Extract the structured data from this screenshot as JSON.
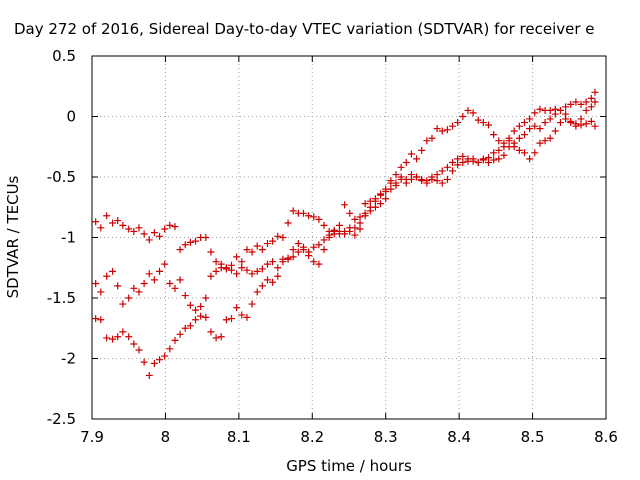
{
  "chart_data": {
    "type": "scatter",
    "title": "Day 272 of 2016, Sidereal Day-to-day VTEC variation (SDTVAR) for receiver e",
    "xlabel": "GPS time / hours",
    "ylabel": "SDTVAR / TECUs",
    "xlim": [
      7.9,
      8.6
    ],
    "ylim": [
      -2.5,
      0.5
    ],
    "xticks": [
      "7.9",
      "8",
      "8.1",
      "8.2",
      "8.3",
      "8.4",
      "8.5",
      "8.6"
    ],
    "yticks": [
      "0.5",
      "0",
      "-0.5",
      "-1",
      "-1.5",
      "-2",
      "-2.5"
    ],
    "grid": true,
    "marker": "plus",
    "color": "#cc0000",
    "series": [
      {
        "points": [
          [
            7.905,
            -0.87
          ],
          [
            7.912,
            -0.92
          ],
          [
            7.92,
            -0.82
          ],
          [
            7.928,
            -0.88
          ],
          [
            7.935,
            -0.86
          ],
          [
            7.942,
            -0.9
          ],
          [
            7.95,
            -0.93
          ],
          [
            7.957,
            -0.95
          ],
          [
            7.964,
            -0.92
          ],
          [
            7.971,
            -0.97
          ],
          [
            7.978,
            -1.02
          ],
          [
            7.985,
            -0.96
          ],
          [
            7.992,
            -0.99
          ],
          [
            7.999,
            -0.93
          ],
          [
            8.006,
            -0.9
          ],
          [
            8.013,
            -0.91
          ],
          [
            8.02,
            -1.1
          ],
          [
            8.027,
            -1.06
          ],
          [
            8.034,
            -1.04
          ],
          [
            8.041,
            -1.03
          ],
          [
            8.048,
            -1.0
          ],
          [
            8.055,
            -1.0
          ],
          [
            8.062,
            -1.12
          ],
          [
            8.069,
            -1.2
          ],
          [
            8.076,
            -1.25
          ],
          [
            8.083,
            -1.26
          ],
          [
            8.09,
            -1.23
          ],
          [
            8.097,
            -1.16
          ],
          [
            8.104,
            -1.2
          ],
          [
            8.111,
            -1.1
          ],
          [
            8.118,
            -1.12
          ],
          [
            8.125,
            -1.07
          ],
          [
            8.132,
            -1.1
          ],
          [
            8.139,
            -1.05
          ],
          [
            8.146,
            -1.03
          ],
          [
            8.153,
            -0.99
          ],
          [
            8.16,
            -1.0
          ],
          [
            8.167,
            -0.88
          ],
          [
            8.174,
            -0.78
          ],
          [
            8.181,
            -0.8
          ],
          [
            8.188,
            -0.8
          ],
          [
            8.195,
            -0.82
          ],
          [
            8.202,
            -0.83
          ],
          [
            8.209,
            -0.85
          ],
          [
            8.216,
            -0.9
          ],
          [
            8.223,
            -0.95
          ],
          [
            8.23,
            -0.94
          ],
          [
            8.237,
            -0.9
          ],
          [
            8.244,
            -0.73
          ],
          [
            8.251,
            -0.8
          ],
          [
            8.258,
            -0.85
          ],
          [
            8.265,
            -0.83
          ],
          [
            8.272,
            -0.72
          ],
          [
            8.279,
            -0.7
          ],
          [
            8.286,
            -0.68
          ],
          [
            8.293,
            -0.64
          ],
          [
            8.3,
            -0.6
          ],
          [
            8.307,
            -0.53
          ],
          [
            8.314,
            -0.48
          ],
          [
            8.321,
            -0.42
          ],
          [
            8.328,
            -0.38
          ],
          [
            8.335,
            -0.31
          ],
          [
            8.342,
            -0.35
          ],
          [
            8.349,
            -0.28
          ],
          [
            8.356,
            -0.2
          ],
          [
            8.363,
            -0.18
          ],
          [
            8.37,
            -0.1
          ],
          [
            8.377,
            -0.12
          ],
          [
            8.384,
            -0.11
          ],
          [
            8.391,
            -0.08
          ],
          [
            8.398,
            -0.05
          ],
          [
            8.405,
            0.0
          ],
          [
            8.412,
            0.05
          ],
          [
            8.419,
            0.03
          ],
          [
            8.426,
            -0.03
          ],
          [
            8.433,
            -0.05
          ],
          [
            8.44,
            -0.07
          ],
          [
            8.447,
            -0.15
          ],
          [
            8.454,
            -0.2
          ],
          [
            8.461,
            -0.22
          ],
          [
            8.468,
            -0.18
          ],
          [
            8.475,
            -0.25
          ],
          [
            8.482,
            -0.28
          ],
          [
            8.489,
            -0.3
          ],
          [
            8.496,
            -0.35
          ],
          [
            8.503,
            -0.3
          ],
          [
            8.51,
            -0.22
          ],
          [
            8.517,
            -0.2
          ],
          [
            8.524,
            -0.18
          ],
          [
            8.531,
            -0.12
          ],
          [
            8.538,
            -0.05
          ],
          [
            8.545,
            -0.02
          ],
          [
            8.552,
            -0.05
          ],
          [
            8.559,
            -0.08
          ],
          [
            8.566,
            -0.02
          ],
          [
            8.573,
            0.05
          ],
          [
            8.58,
            0.08
          ],
          [
            8.585,
            0.12
          ]
        ]
      },
      {
        "points": [
          [
            7.905,
            -1.38
          ],
          [
            7.912,
            -1.45
          ],
          [
            7.92,
            -1.32
          ],
          [
            7.928,
            -1.28
          ],
          [
            7.935,
            -1.4
          ],
          [
            7.942,
            -1.55
          ],
          [
            7.95,
            -1.5
          ],
          [
            7.957,
            -1.42
          ],
          [
            7.964,
            -1.45
          ],
          [
            7.971,
            -1.38
          ],
          [
            7.978,
            -1.3
          ],
          [
            7.985,
            -1.35
          ],
          [
            7.992,
            -1.28
          ],
          [
            7.999,
            -1.22
          ],
          [
            8.006,
            -1.38
          ],
          [
            8.013,
            -1.42
          ],
          [
            8.02,
            -1.35
          ],
          [
            8.027,
            -1.48
          ],
          [
            8.034,
            -1.56
          ],
          [
            8.041,
            -1.6
          ],
          [
            8.048,
            -1.57
          ],
          [
            8.055,
            -1.5
          ],
          [
            8.062,
            -1.32
          ],
          [
            8.069,
            -1.28
          ],
          [
            8.076,
            -1.22
          ],
          [
            8.083,
            -1.25
          ],
          [
            8.09,
            -1.27
          ],
          [
            8.097,
            -1.3
          ],
          [
            8.104,
            -1.25
          ],
          [
            8.111,
            -1.27
          ],
          [
            8.118,
            -1.3
          ],
          [
            8.125,
            -1.28
          ],
          [
            8.132,
            -1.26
          ],
          [
            8.139,
            -1.22
          ],
          [
            8.146,
            -1.2
          ],
          [
            8.153,
            -1.25
          ],
          [
            8.16,
            -1.18
          ],
          [
            8.167,
            -1.17
          ],
          [
            8.174,
            -1.1
          ],
          [
            8.181,
            -1.05
          ],
          [
            8.188,
            -1.08
          ],
          [
            8.195,
            -1.15
          ],
          [
            8.202,
            -1.2
          ],
          [
            8.209,
            -1.22
          ],
          [
            8.216,
            -1.1
          ],
          [
            8.223,
            -1.0
          ],
          [
            8.23,
            -0.95
          ],
          [
            8.237,
            -0.97
          ],
          [
            8.244,
            -0.95
          ],
          [
            8.251,
            -0.92
          ],
          [
            8.258,
            -0.92
          ],
          [
            8.265,
            -0.88
          ],
          [
            8.272,
            -0.8
          ],
          [
            8.279,
            -0.78
          ],
          [
            8.286,
            -0.75
          ],
          [
            8.293,
            -0.72
          ],
          [
            8.3,
            -0.68
          ],
          [
            8.307,
            -0.6
          ],
          [
            8.314,
            -0.55
          ],
          [
            8.321,
            -0.5
          ],
          [
            8.328,
            -0.52
          ],
          [
            8.335,
            -0.48
          ],
          [
            8.342,
            -0.5
          ],
          [
            8.349,
            -0.52
          ],
          [
            8.356,
            -0.53
          ],
          [
            8.363,
            -0.5
          ],
          [
            8.37,
            -0.53
          ],
          [
            8.377,
            -0.55
          ],
          [
            8.384,
            -0.52
          ],
          [
            8.391,
            -0.45
          ],
          [
            8.398,
            -0.4
          ],
          [
            8.405,
            -0.38
          ],
          [
            8.412,
            -0.35
          ],
          [
            8.419,
            -0.37
          ],
          [
            8.426,
            -0.38
          ],
          [
            8.433,
            -0.35
          ],
          [
            8.44,
            -0.38
          ],
          [
            8.447,
            -0.36
          ],
          [
            8.454,
            -0.35
          ],
          [
            8.461,
            -0.32
          ],
          [
            8.468,
            -0.25
          ],
          [
            8.475,
            -0.22
          ],
          [
            8.482,
            -0.18
          ],
          [
            8.489,
            -0.15
          ],
          [
            8.496,
            -0.1
          ],
          [
            8.503,
            -0.08
          ],
          [
            8.51,
            -0.1
          ],
          [
            8.517,
            -0.05
          ],
          [
            8.524,
            -0.02
          ],
          [
            8.531,
            0.02
          ],
          [
            8.538,
            0.05
          ],
          [
            8.545,
            0.08
          ],
          [
            8.552,
            0.1
          ],
          [
            8.559,
            0.12
          ],
          [
            8.566,
            0.1
          ],
          [
            8.573,
            0.12
          ],
          [
            8.58,
            0.15
          ],
          [
            8.585,
            0.2
          ]
        ]
      },
      {
        "points": [
          [
            7.905,
            -1.67
          ],
          [
            7.912,
            -1.68
          ],
          [
            7.92,
            -1.83
          ],
          [
            7.928,
            -1.84
          ],
          [
            7.935,
            -1.82
          ],
          [
            7.942,
            -1.78
          ],
          [
            7.95,
            -1.82
          ],
          [
            7.957,
            -1.88
          ],
          [
            7.964,
            -1.93
          ],
          [
            7.971,
            -2.03
          ],
          [
            7.978,
            -2.14
          ],
          [
            7.985,
            -2.04
          ],
          [
            7.992,
            -2.01
          ],
          [
            7.999,
            -1.98
          ],
          [
            8.006,
            -1.92
          ],
          [
            8.013,
            -1.85
          ],
          [
            8.02,
            -1.8
          ],
          [
            8.027,
            -1.75
          ],
          [
            8.034,
            -1.73
          ],
          [
            8.041,
            -1.68
          ],
          [
            8.048,
            -1.65
          ],
          [
            8.055,
            -1.66
          ],
          [
            8.062,
            -1.78
          ],
          [
            8.069,
            -1.83
          ],
          [
            8.076,
            -1.82
          ],
          [
            8.083,
            -1.68
          ],
          [
            8.09,
            -1.67
          ],
          [
            8.097,
            -1.58
          ],
          [
            8.104,
            -1.64
          ],
          [
            8.111,
            -1.66
          ],
          [
            8.118,
            -1.55
          ],
          [
            8.125,
            -1.45
          ],
          [
            8.132,
            -1.4
          ],
          [
            8.139,
            -1.35
          ],
          [
            8.146,
            -1.37
          ],
          [
            8.153,
            -1.32
          ],
          [
            8.16,
            -1.2
          ],
          [
            8.167,
            -1.18
          ],
          [
            8.174,
            -1.16
          ],
          [
            8.181,
            -1.12
          ],
          [
            8.188,
            -1.1
          ],
          [
            8.195,
            -1.12
          ],
          [
            8.202,
            -1.08
          ],
          [
            8.209,
            -1.06
          ],
          [
            8.216,
            -1.02
          ],
          [
            8.223,
            -0.98
          ],
          [
            8.23,
            -0.97
          ],
          [
            8.237,
            -0.95
          ],
          [
            8.244,
            -0.97
          ],
          [
            8.251,
            -0.95
          ],
          [
            8.258,
            -0.98
          ],
          [
            8.265,
            -0.93
          ],
          [
            8.272,
            -0.82
          ],
          [
            8.279,
            -0.75
          ],
          [
            8.286,
            -0.7
          ],
          [
            8.293,
            -0.65
          ],
          [
            8.3,
            -0.62
          ],
          [
            8.307,
            -0.55
          ],
          [
            8.314,
            -0.57
          ],
          [
            8.321,
            -0.52
          ],
          [
            8.328,
            -0.55
          ],
          [
            8.335,
            -0.52
          ],
          [
            8.342,
            -0.5
          ],
          [
            8.349,
            -0.53
          ],
          [
            8.356,
            -0.55
          ],
          [
            8.363,
            -0.52
          ],
          [
            8.37,
            -0.48
          ],
          [
            8.377,
            -0.45
          ],
          [
            8.384,
            -0.42
          ],
          [
            8.391,
            -0.38
          ],
          [
            8.398,
            -0.35
          ],
          [
            8.405,
            -0.33
          ],
          [
            8.412,
            -0.37
          ],
          [
            8.419,
            -0.35
          ],
          [
            8.426,
            -0.38
          ],
          [
            8.433,
            -0.36
          ],
          [
            8.44,
            -0.34
          ],
          [
            8.447,
            -0.3
          ],
          [
            8.454,
            -0.28
          ],
          [
            8.461,
            -0.25
          ],
          [
            8.468,
            -0.2
          ],
          [
            8.475,
            -0.12
          ],
          [
            8.482,
            -0.08
          ],
          [
            8.489,
            -0.05
          ],
          [
            8.496,
            -0.02
          ],
          [
            8.503,
            0.03
          ],
          [
            8.51,
            0.06
          ],
          [
            8.517,
            0.05
          ],
          [
            8.524,
            0.05
          ],
          [
            8.531,
            0.06
          ],
          [
            8.538,
            0.05
          ],
          [
            8.545,
            0.02
          ],
          [
            8.552,
            -0.04
          ],
          [
            8.559,
            -0.06
          ],
          [
            8.566,
            -0.07
          ],
          [
            8.573,
            -0.06
          ],
          [
            8.58,
            -0.04
          ],
          [
            8.585,
            -0.08
          ]
        ]
      }
    ]
  }
}
